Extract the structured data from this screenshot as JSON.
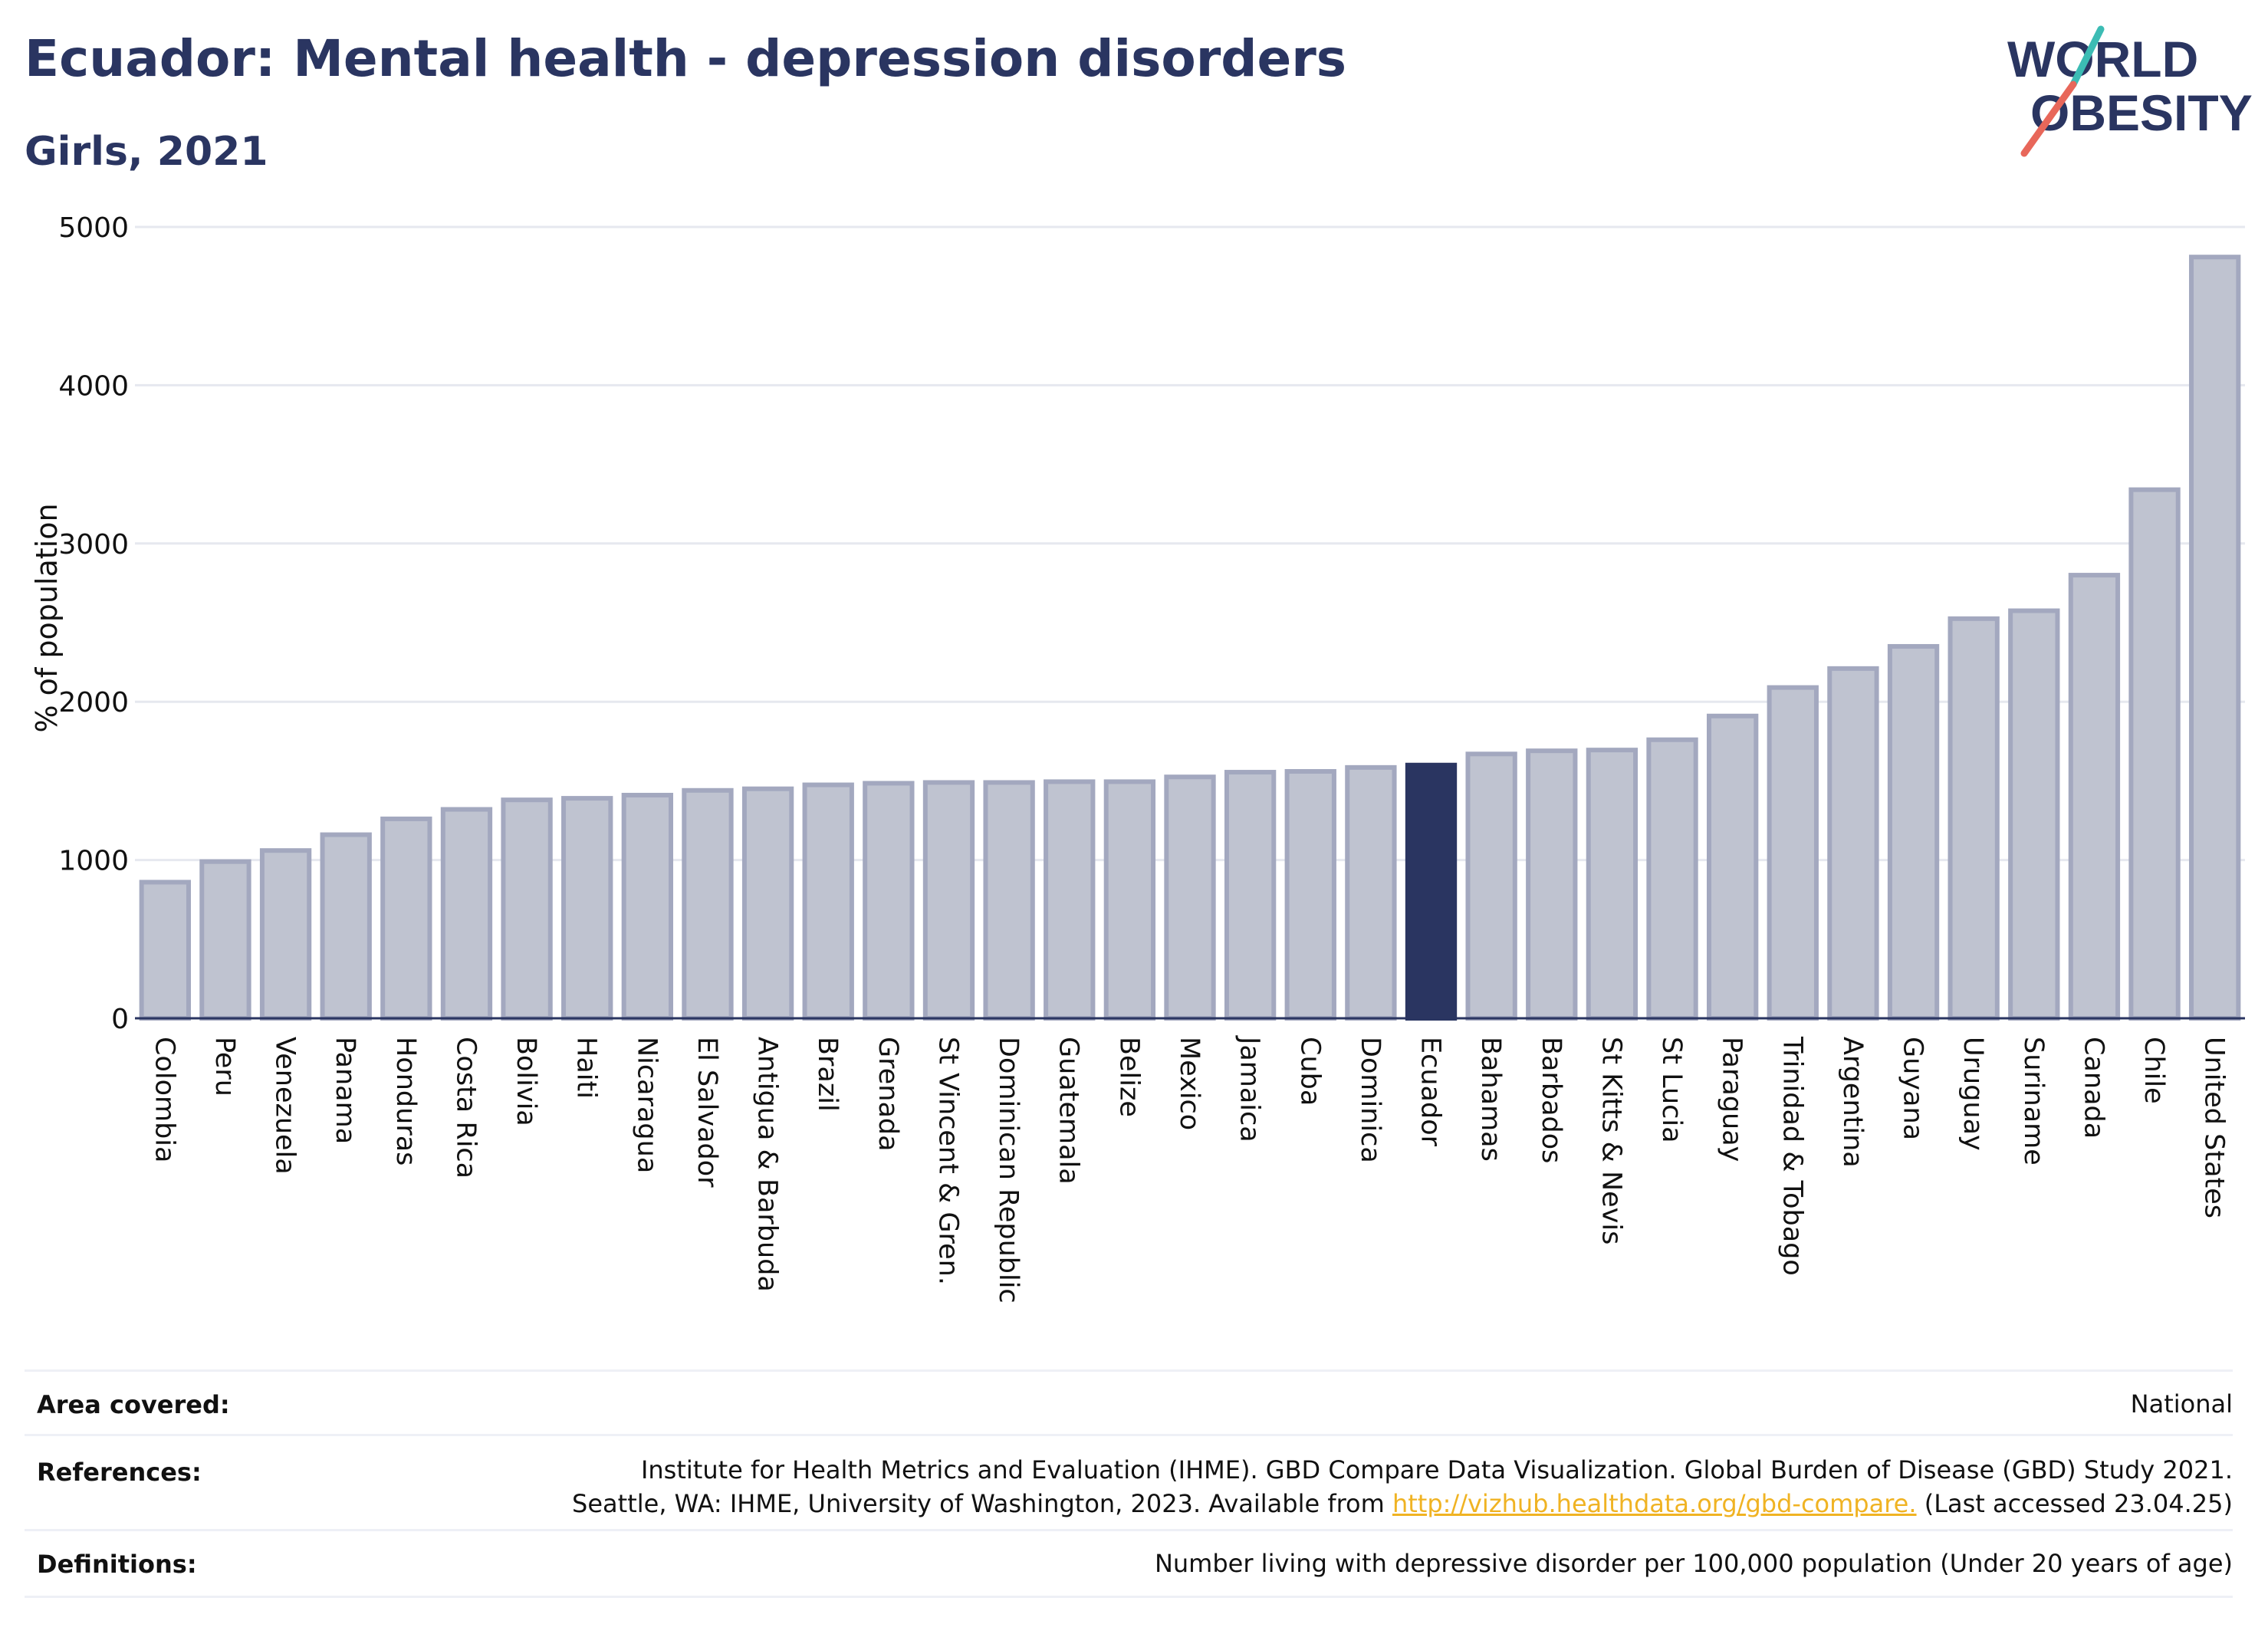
{
  "header": {
    "title": "Ecuador: Mental health - depression disorders",
    "subtitle": "Girls, 2021"
  },
  "logo": {
    "line1": "WORLD",
    "line2": "OBESITY"
  },
  "chart_data": {
    "type": "bar",
    "ylabel": "% of population",
    "ylim": [
      0,
      5000
    ],
    "yticks": [
      0,
      1000,
      2000,
      3000,
      4000,
      5000
    ],
    "grid": true,
    "highlight": "Ecuador",
    "colors": {
      "bar": "#bfc3d0",
      "bar_edge": "#a3a8bf",
      "highlight": "#2a3561",
      "grid": "#e6e8ef",
      "axis": "#2a3561"
    },
    "categories": [
      "Colombia",
      "Peru",
      "Venezuela",
      "Panama",
      "Honduras",
      "Costa Rica",
      "Bolivia",
      "Haiti",
      "Nicaragua",
      "El Salvador",
      "Antigua & Barbuda",
      "Brazil",
      "Grenada",
      "St Vincent & Gren.",
      "Dominican Republic",
      "Guatemala",
      "Belize",
      "Mexico",
      "Jamaica",
      "Cuba",
      "Dominica",
      "Ecuador",
      "Bahamas",
      "Barbados",
      "St Kitts & Nevis",
      "St Lucia",
      "Paraguay",
      "Trinidad & Tobago",
      "Argentina",
      "Guyana",
      "Uruguay",
      "Suriname",
      "Canada",
      "Chile",
      "United States"
    ],
    "values": [
      860,
      990,
      1060,
      1160,
      1260,
      1320,
      1380,
      1390,
      1410,
      1440,
      1450,
      1475,
      1485,
      1490,
      1490,
      1495,
      1495,
      1525,
      1555,
      1560,
      1585,
      1600,
      1670,
      1690,
      1695,
      1760,
      1910,
      2090,
      2210,
      2350,
      2525,
      2575,
      2800,
      3340,
      4810
    ]
  },
  "footer": {
    "area_label": "Area covered:",
    "area_value": "National",
    "references_label": "References:",
    "references_line1": "Institute for Health Metrics and Evaluation (IHME). GBD Compare Data Visualization. Global Burden of Disease (GBD) Study 2021.",
    "references_line2_pre": "Seattle, WA: IHME, University of Washington, 2023. Available from ",
    "references_link": "http://vizhub.healthdata.org/gbd-compare.",
    "references_line2_post": " (Last accessed 23.04.25)",
    "definitions_label": "Definitions:",
    "definitions_value": "Number living with depressive disorder per 100,000 population (Under 20 years of age)"
  }
}
